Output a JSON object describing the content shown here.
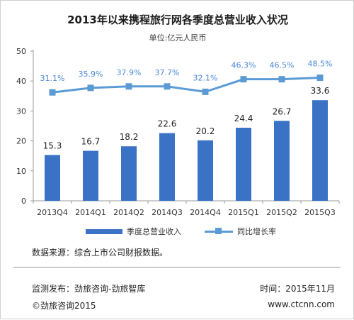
{
  "colors": {
    "bar": "#3a72c5",
    "line": "#5b9bd5",
    "rate_label": "#4a8ad8",
    "axis": "#9a9a9a",
    "text": "#333333"
  },
  "chart_data": {
    "type": "bar",
    "title": "2013年以来携程旅行网各季度总营业收入状况",
    "subtitle": "单位:亿元人民币",
    "categories": [
      "2013Q4",
      "2014Q1",
      "2014Q2",
      "2014Q3",
      "2014Q4",
      "2015Q1",
      "2015Q2",
      "2015Q3"
    ],
    "ylim": [
      0,
      50
    ],
    "yticks": [
      0,
      10,
      20,
      30,
      40,
      50
    ],
    "series": [
      {
        "name": "季度总营业收入",
        "type": "bar",
        "values": [
          15.3,
          16.7,
          18.2,
          22.6,
          20.2,
          24.4,
          26.7,
          33.6
        ],
        "labels": [
          "15.3",
          "16.7",
          "18.2",
          "22.6",
          "20.2",
          "24.4",
          "26.7",
          "33.6"
        ]
      },
      {
        "name": "同比增长率",
        "type": "line",
        "values": [
          31.1,
          35.9,
          37.9,
          37.7,
          32.1,
          46.3,
          46.5,
          48.5
        ],
        "labels": [
          "31.1%",
          "35.9%",
          "37.9%",
          "37.7%",
          "32.1%",
          "46.3%",
          "46.5%",
          "48.5%"
        ],
        "plot_y": [
          36.2,
          37.7,
          38.2,
          38.2,
          36.4,
          40.6,
          40.6,
          41.1
        ]
      }
    ],
    "legend": "bottom-center",
    "grid": false
  },
  "footer": {
    "source": "数据来源：综合上市公司财报数据。",
    "publisher": "监测发布：劲旅咨询-劲旅智库",
    "time": "时间：2015年11月",
    "copyright": "©劲旅咨询2015",
    "website": "www.ctcnn.com"
  }
}
